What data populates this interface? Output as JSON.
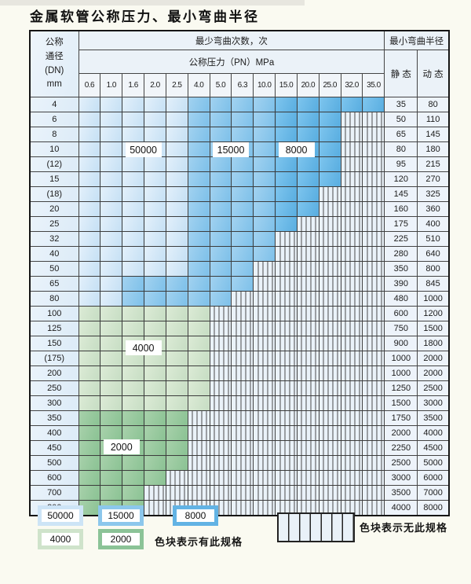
{
  "page": {
    "title": "金属软管公称压力、最小弯曲半径"
  },
  "chart_data": {
    "type": "table",
    "title": "金属软管公称压力、最小弯曲半径",
    "headers": {
      "dn_lines": [
        "公称",
        "通径",
        "(DN)",
        "mm"
      ],
      "bend_times": "最少弯曲次数，次",
      "pressure": "公称压力（PN）MPa",
      "min_radius": "最小弯曲半径",
      "static": "静 态",
      "dynamic": "动 态"
    },
    "pressure_columns": [
      "0.6",
      "1.0",
      "1.6",
      "2.0",
      "2.5",
      "4.0",
      "5.0",
      "6.3",
      "10.0",
      "15.0",
      "20.0",
      "25.0",
      "32.0",
      "35.0"
    ],
    "zone_legend": [
      {
        "code": "b1",
        "cycles": "50000",
        "color": "#cde4f6"
      },
      {
        "code": "b2",
        "cycles": "15000",
        "color": "#8cc7ec"
      },
      {
        "code": "b3",
        "cycles": "8000",
        "color": "#62b3e4"
      },
      {
        "code": "g1",
        "cycles": "4000",
        "color": "#cfe3cb"
      },
      {
        "code": "g2",
        "cycles": "2000",
        "color": "#8bc397"
      }
    ],
    "has_spec_note": "色块表示有此规格",
    "no_spec_note": "色块表示无此规格",
    "rows": [
      {
        "dn": "4",
        "static": "35",
        "dynamic": "80",
        "zones": [
          [
            "b1",
            5
          ],
          [
            "b2",
            4
          ],
          [
            "b3",
            5
          ]
        ]
      },
      {
        "dn": "6",
        "static": "50",
        "dynamic": "110",
        "zones": [
          [
            "b1",
            5
          ],
          [
            "b2",
            4
          ],
          [
            "b3",
            3
          ],
          [
            "x",
            2
          ]
        ]
      },
      {
        "dn": "8",
        "static": "65",
        "dynamic": "145",
        "zones": [
          [
            "b1",
            5
          ],
          [
            "b2",
            4
          ],
          [
            "b3",
            3
          ],
          [
            "x",
            2
          ]
        ]
      },
      {
        "dn": "10",
        "static": "80",
        "dynamic": "180",
        "zones": [
          [
            "b1",
            5
          ],
          [
            "b2",
            4
          ],
          [
            "b3",
            3
          ],
          [
            "x",
            2
          ]
        ]
      },
      {
        "dn": "(12)",
        "static": "95",
        "dynamic": "215",
        "zones": [
          [
            "b1",
            5
          ],
          [
            "b2",
            4
          ],
          [
            "b3",
            3
          ],
          [
            "x",
            2
          ]
        ]
      },
      {
        "dn": "15",
        "static": "120",
        "dynamic": "270",
        "zones": [
          [
            "b1",
            5
          ],
          [
            "b2",
            4
          ],
          [
            "b3",
            3
          ],
          [
            "x",
            2
          ]
        ]
      },
      {
        "dn": "(18)",
        "static": "145",
        "dynamic": "325",
        "zones": [
          [
            "b1",
            5
          ],
          [
            "b2",
            4
          ],
          [
            "b3",
            2
          ],
          [
            "x",
            3
          ]
        ]
      },
      {
        "dn": "20",
        "static": "160",
        "dynamic": "360",
        "zones": [
          [
            "b1",
            5
          ],
          [
            "b2",
            4
          ],
          [
            "b3",
            2
          ],
          [
            "x",
            3
          ]
        ]
      },
      {
        "dn": "25",
        "static": "175",
        "dynamic": "400",
        "zones": [
          [
            "b1",
            5
          ],
          [
            "b2",
            4
          ],
          [
            "b3",
            1
          ],
          [
            "x",
            4
          ]
        ]
      },
      {
        "dn": "32",
        "static": "225",
        "dynamic": "510",
        "zones": [
          [
            "b1",
            5
          ],
          [
            "b2",
            4
          ],
          [
            "x",
            5
          ]
        ]
      },
      {
        "dn": "40",
        "static": "280",
        "dynamic": "640",
        "zones": [
          [
            "b1",
            5
          ],
          [
            "b2",
            4
          ],
          [
            "x",
            5
          ]
        ]
      },
      {
        "dn": "50",
        "static": "350",
        "dynamic": "800",
        "zones": [
          [
            "b1",
            5
          ],
          [
            "b2",
            3
          ],
          [
            "x",
            6
          ]
        ]
      },
      {
        "dn": "65",
        "static": "390",
        "dynamic": "845",
        "zones": [
          [
            "b1",
            2
          ],
          [
            "b2",
            6
          ],
          [
            "x",
            6
          ]
        ]
      },
      {
        "dn": "80",
        "static": "480",
        "dynamic": "1000",
        "zones": [
          [
            "b1",
            2
          ],
          [
            "b2",
            5
          ],
          [
            "x",
            7
          ]
        ]
      },
      {
        "dn": "100",
        "static": "600",
        "dynamic": "1200",
        "zones": [
          [
            "g1",
            6
          ],
          [
            "x",
            8
          ]
        ]
      },
      {
        "dn": "125",
        "static": "750",
        "dynamic": "1500",
        "zones": [
          [
            "g1",
            6
          ],
          [
            "x",
            8
          ]
        ]
      },
      {
        "dn": "150",
        "static": "900",
        "dynamic": "1800",
        "zones": [
          [
            "g1",
            6
          ],
          [
            "x",
            8
          ]
        ]
      },
      {
        "dn": "(175)",
        "static": "1000",
        "dynamic": "2000",
        "zones": [
          [
            "g1",
            6
          ],
          [
            "x",
            8
          ]
        ]
      },
      {
        "dn": "200",
        "static": "1000",
        "dynamic": "2000",
        "zones": [
          [
            "g1",
            6
          ],
          [
            "x",
            8
          ]
        ]
      },
      {
        "dn": "250",
        "static": "1250",
        "dynamic": "2500",
        "zones": [
          [
            "g1",
            6
          ],
          [
            "x",
            8
          ]
        ]
      },
      {
        "dn": "300",
        "static": "1500",
        "dynamic": "3000",
        "zones": [
          [
            "g1",
            6
          ],
          [
            "x",
            8
          ]
        ]
      },
      {
        "dn": "350",
        "static": "1750",
        "dynamic": "3500",
        "zones": [
          [
            "g2",
            5
          ],
          [
            "x",
            9
          ]
        ]
      },
      {
        "dn": "400",
        "static": "2000",
        "dynamic": "4000",
        "zones": [
          [
            "g2",
            5
          ],
          [
            "x",
            9
          ]
        ]
      },
      {
        "dn": "450",
        "static": "2250",
        "dynamic": "4500",
        "zones": [
          [
            "g2",
            5
          ],
          [
            "x",
            9
          ]
        ]
      },
      {
        "dn": "500",
        "static": "2500",
        "dynamic": "5000",
        "zones": [
          [
            "g2",
            5
          ],
          [
            "x",
            9
          ]
        ]
      },
      {
        "dn": "600",
        "static": "3000",
        "dynamic": "6000",
        "zones": [
          [
            "g2",
            4
          ],
          [
            "x",
            10
          ]
        ]
      },
      {
        "dn": "700",
        "static": "3500",
        "dynamic": "7000",
        "zones": [
          [
            "g2",
            3
          ],
          [
            "x",
            11
          ]
        ]
      },
      {
        "dn": "800",
        "static": "4000",
        "dynamic": "8000",
        "zones": [
          [
            "g2",
            3
          ],
          [
            "x",
            11
          ]
        ]
      }
    ],
    "value_labels": [
      {
        "text": "50000",
        "col": 2,
        "row": 4
      },
      {
        "text": "15000",
        "col": 6,
        "row": 4
      },
      {
        "text": "8000",
        "col": 9,
        "row": 4
      },
      {
        "text": "4000",
        "col": 2,
        "row": 18
      },
      {
        "text": "2000",
        "col": 1,
        "row": 25
      }
    ]
  }
}
